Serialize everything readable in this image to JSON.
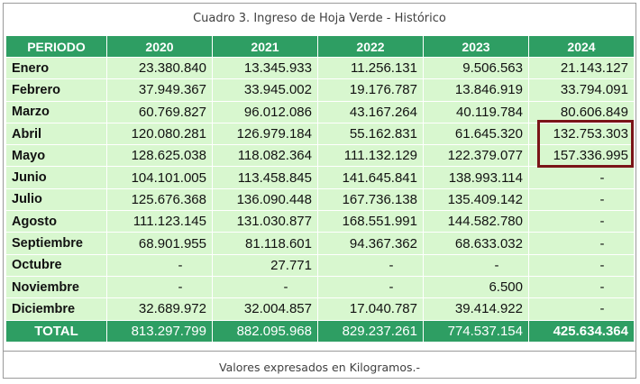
{
  "title": "Cuadro 3. Ingreso de Hoja Verde - Histórico",
  "footer": "Valores expresados en Kilogramos.-",
  "header": {
    "period": "PERIODO",
    "years": [
      "2020",
      "2021",
      "2022",
      "2023",
      "2024"
    ]
  },
  "rows": [
    {
      "month": "Enero",
      "values": [
        "23.380.840",
        "13.345.933",
        "11.256.131",
        "9.506.563",
        "21.143.127"
      ]
    },
    {
      "month": "Febrero",
      "values": [
        "37.949.367",
        "33.945.002",
        "19.176.787",
        "13.846.919",
        "33.794.091"
      ]
    },
    {
      "month": "Marzo",
      "values": [
        "60.769.827",
        "96.012.086",
        "43.167.264",
        "40.119.784",
        "80.606.849"
      ]
    },
    {
      "month": "Abril",
      "values": [
        "120.080.281",
        "126.979.184",
        "55.162.831",
        "61.645.320",
        "132.753.303"
      ]
    },
    {
      "month": "Mayo",
      "values": [
        "128.625.038",
        "118.082.364",
        "111.132.129",
        "122.379.077",
        "157.336.995"
      ]
    },
    {
      "month": "Junio",
      "values": [
        "104.101.005",
        "113.458.845",
        "141.645.841",
        "138.993.114",
        "-"
      ]
    },
    {
      "month": "Julio",
      "values": [
        "125.676.368",
        "136.090.448",
        "167.736.138",
        "135.409.142",
        "-"
      ]
    },
    {
      "month": "Agosto",
      "values": [
        "111.123.145",
        "131.030.877",
        "168.551.991",
        "144.582.780",
        "-"
      ]
    },
    {
      "month": "Septiembre",
      "values": [
        "68.901.955",
        "81.118.601",
        "94.367.362",
        "68.633.032",
        "-"
      ]
    },
    {
      "month": "Octubre",
      "values": [
        "-",
        "27.771",
        "-",
        "-",
        "-"
      ]
    },
    {
      "month": "Noviembre",
      "values": [
        "-",
        "-",
        "-",
        "6.500",
        "-"
      ]
    },
    {
      "month": "Diciembre",
      "values": [
        "32.689.972",
        "32.004.857",
        "17.040.787",
        "39.414.922",
        "-"
      ]
    }
  ],
  "total": {
    "label": "TOTAL",
    "values": [
      "813.297.799",
      "882.095.968",
      "829.237.261",
      "774.537.154",
      "425.634.364"
    ]
  },
  "colors": {
    "header_bg": "#2e9e63",
    "cell_bg": "#d8f7cf",
    "highlight_border": "#7a1418"
  }
}
